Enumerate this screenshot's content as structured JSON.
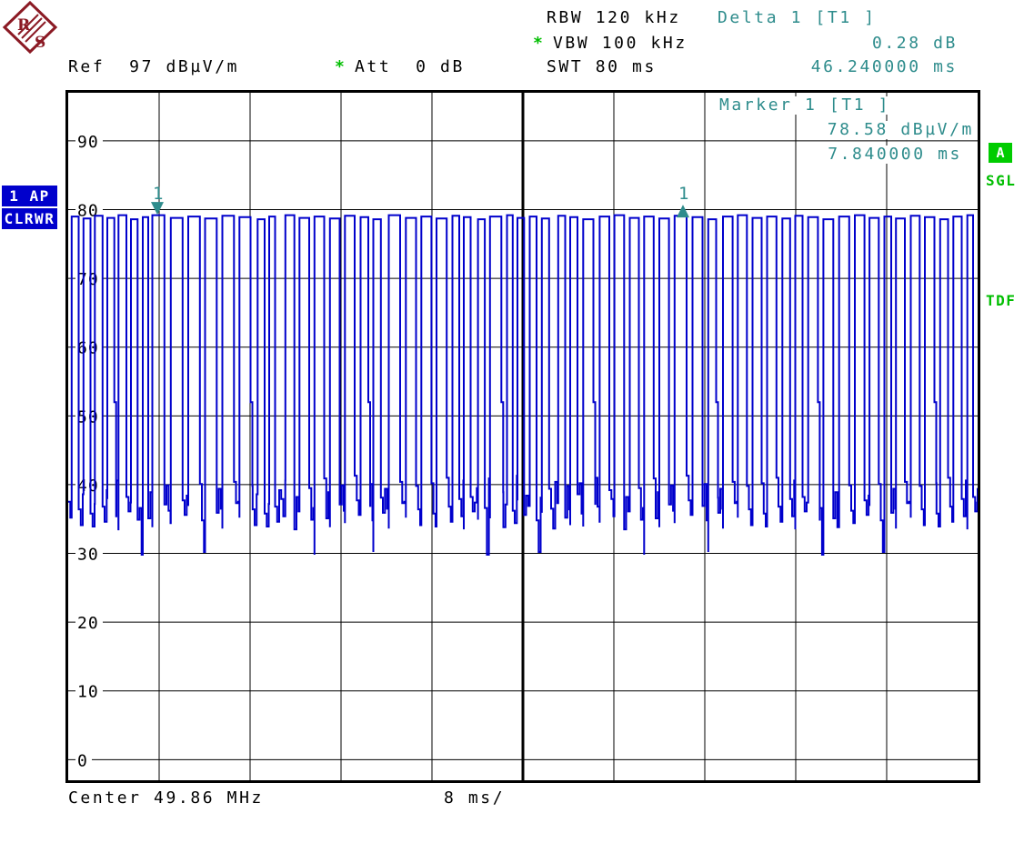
{
  "header": {
    "ref": "Ref  97 dBµV/m",
    "att_star": "*",
    "att": "Att  0 dB",
    "rbw": "RBW 120 kHz",
    "vbw_star": "*",
    "vbw": "VBW 100 kHz",
    "swt": "SWT 80 ms",
    "delta_title": "Delta 1 [T1 ]",
    "delta_level": "0.28 dB",
    "delta_time": "46.240000 ms"
  },
  "marker_readout": {
    "title": "Marker 1 [T1 ]",
    "level": "78.58 dBµV/m",
    "time": "7.840000 ms"
  },
  "badges": {
    "trace": "1 AP",
    "trace_mode": "CLRWR",
    "screen": "A",
    "sweep_mode": "SGL",
    "transducer": "TDF"
  },
  "footer": {
    "center": "Center 49.86 MHz",
    "scale": "8 ms/"
  },
  "logo": {
    "letter_top": "R",
    "letter_bottom": "S"
  },
  "colors": {
    "trace": "#0000CC",
    "marker_teal": "#2E8C8C",
    "enable_green": "#00BE00",
    "badge_blue": "#0000CC",
    "logo_red": "#8B1A24",
    "grid": "#000000"
  },
  "chart_data": {
    "type": "line",
    "title": "Zero-span time-domain trace (Trace 1, clear/write, average-peak)",
    "x_unit": "ms",
    "x_range": [
      0,
      80
    ],
    "x_per_div": 8,
    "y_unit": "dBµV/m",
    "y_top": 97,
    "y_bottom": -3,
    "y_ticks": [
      90,
      80,
      70,
      60,
      50,
      40,
      30,
      20,
      10,
      0
    ],
    "ref_level": 97,
    "center_frequency_mhz": 49.86,
    "grid_divisions_x": 10,
    "center_line": true,
    "high_level_dB": 79,
    "noise_band_dB": [
      33.5,
      41.5
    ],
    "markers": [
      {
        "label": "1",
        "type": "marker-down",
        "t_ms": 7.84,
        "level_dB": 78.58
      },
      {
        "label": "1",
        "type": "delta-up",
        "t_ms": 54.08,
        "level_dB": 78.86
      }
    ],
    "pulses": [
      [
        0.3,
        0.92,
        79.0
      ],
      [
        1.34,
        1.96,
        78.7
      ],
      [
        2.34,
        3.02,
        79.1
      ],
      [
        3.44,
        4.06,
        78.8
      ],
      [
        4.42,
        5.12,
        79.2
      ],
      [
        5.52,
        6.1,
        78.6
      ],
      [
        6.56,
        7.04,
        78.9
      ],
      [
        7.4,
        8.46,
        79.2
      ],
      [
        9.02,
        10.06,
        78.8
      ],
      [
        10.56,
        11.58,
        79.0
      ],
      [
        12.04,
        13.06,
        78.7
      ],
      [
        13.56,
        14.58,
        79.1
      ],
      [
        15.06,
        16.04,
        78.9
      ],
      [
        16.66,
        17.28,
        78.6
      ],
      [
        17.68,
        18.2,
        79.0
      ],
      [
        19.1,
        19.9,
        79.2
      ],
      [
        20.34,
        21.2,
        78.8
      ],
      [
        21.66,
        22.52,
        79.0
      ],
      [
        23.02,
        23.88,
        78.7
      ],
      [
        24.34,
        25.2,
        79.1
      ],
      [
        25.72,
        26.4,
        78.9
      ],
      [
        26.84,
        27.5,
        78.6
      ],
      [
        28.2,
        29.2,
        79.2
      ],
      [
        29.7,
        30.6,
        78.8
      ],
      [
        31.06,
        31.95,
        79.0
      ],
      [
        32.4,
        33.3,
        78.7
      ],
      [
        33.8,
        34.4,
        79.1
      ],
      [
        34.8,
        35.4,
        78.9
      ],
      [
        36.05,
        36.65,
        78.6
      ],
      [
        37.1,
        38.1,
        79.0
      ],
      [
        38.6,
        39.1,
        79.2
      ],
      [
        39.52,
        40.1,
        78.8
      ],
      [
        40.6,
        41.2,
        79.0
      ],
      [
        41.66,
        42.3,
        78.7
      ],
      [
        43.1,
        43.72,
        79.1
      ],
      [
        44.16,
        44.8,
        78.9
      ],
      [
        45.3,
        46.2,
        78.6
      ],
      [
        46.75,
        47.6,
        79.0
      ],
      [
        48.05,
        48.9,
        79.2
      ],
      [
        49.4,
        50.2,
        78.8
      ],
      [
        50.66,
        51.5,
        79.0
      ],
      [
        52.0,
        52.85,
        78.7
      ],
      [
        53.34,
        54.4,
        79.1
      ],
      [
        54.92,
        55.8,
        78.9
      ],
      [
        56.3,
        57.0,
        78.6
      ],
      [
        57.6,
        58.45,
        79.0
      ],
      [
        58.9,
        59.7,
        79.2
      ],
      [
        60.2,
        61.0,
        78.8
      ],
      [
        61.48,
        62.3,
        79.0
      ],
      [
        62.82,
        63.5,
        78.7
      ],
      [
        63.96,
        64.6,
        79.1
      ],
      [
        65.1,
        65.95,
        78.9
      ],
      [
        66.43,
        67.3,
        78.6
      ],
      [
        67.82,
        68.7,
        79.0
      ],
      [
        69.2,
        70.05,
        79.2
      ],
      [
        70.49,
        71.3,
        78.8
      ],
      [
        71.8,
        72.4,
        79.0
      ],
      [
        72.82,
        73.6,
        78.7
      ],
      [
        74.12,
        74.9,
        79.1
      ],
      [
        75.36,
        76.2,
        78.9
      ],
      [
        76.7,
        77.4,
        78.6
      ],
      [
        77.86,
        78.6,
        79.0
      ],
      [
        79.1,
        79.6,
        79.2
      ]
    ],
    "shoulder": {
      "level_dB": 52.0,
      "pulse_indices": [
        3,
        12,
        20,
        29,
        36,
        44,
        51,
        59
      ]
    },
    "noise_levels_dB": [
      37.5,
      35.2,
      39.8,
      36.4,
      34.1,
      38.6,
      40.2,
      35.8,
      33.9,
      37.2,
      41.0,
      36.8,
      34.6,
      39.2,
      37.9,
      35.4,
      40.6,
      33.5,
      38.2,
      36.1,
      37.4,
      39.5,
      34.9,
      36.6,
      29.8,
      40.9,
      35.1,
      38.9,
      33.8,
      37.1,
      39.9,
      36.2,
      34.4,
      41.3,
      37.7,
      35.6,
      38.4,
      36.9,
      40.1,
      34.8,
      30.2,
      38.1,
      35.9,
      39.4,
      36.5,
      33.6,
      40.4,
      37.3
    ]
  }
}
